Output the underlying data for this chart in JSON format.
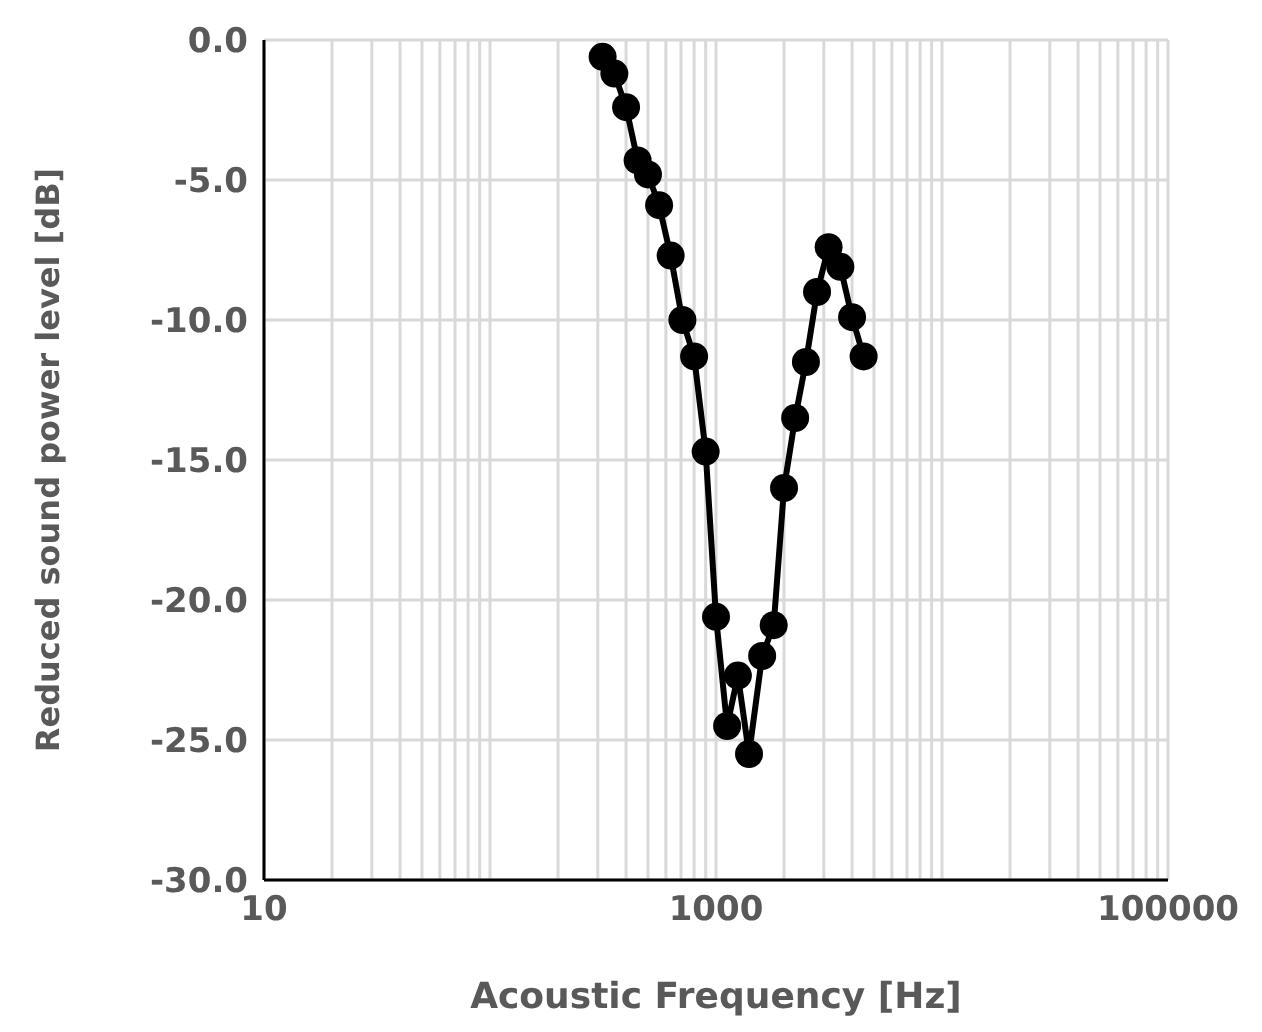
{
  "chart_data": {
    "type": "line",
    "xlabel": "Acoustic Frequency [Hz]",
    "ylabel": "Reduced sound power level [dB]",
    "x": [
      315,
      355,
      400,
      450,
      500,
      560,
      630,
      710,
      800,
      900,
      1000,
      1120,
      1250,
      1400,
      1600,
      1800,
      2000,
      2240,
      2500,
      2800,
      3150,
      3550,
      4000,
      4500
    ],
    "series": [
      {
        "color": "#000000",
        "values": [
          -0.6,
          -1.2,
          -2.4,
          -4.3,
          -4.8,
          -5.9,
          -7.7,
          -10.0,
          -11.3,
          -14.7,
          -20.6,
          -24.5,
          -22.7,
          -25.5,
          -22.0,
          -20.9,
          -16.0,
          -13.5,
          -11.5,
          -9.0,
          -7.4,
          -8.1,
          -9.9,
          -11.3
        ]
      }
    ],
    "log": "x",
    "xlim": [
      10,
      100000
    ],
    "xticks": [
      10,
      {
        "value": 20,
        "label": null
      },
      {
        "value": 30,
        "label": null
      },
      {
        "value": 40,
        "label": null
      },
      {
        "value": 50,
        "label": null
      },
      {
        "value": 60,
        "label": null
      },
      {
        "value": 70,
        "label": null
      },
      {
        "value": 80,
        "label": null
      },
      {
        "value": 90,
        "label": null
      },
      {
        "value": 100,
        "label": null
      },
      {
        "value": 200,
        "label": null
      },
      {
        "value": 300,
        "label": null
      },
      {
        "value": 400,
        "label": null
      },
      {
        "value": 500,
        "label": null
      },
      {
        "value": 600,
        "label": null
      },
      {
        "value": 700,
        "label": null
      },
      {
        "value": 800,
        "label": null
      },
      {
        "value": 900,
        "label": null
      },
      1000,
      {
        "value": 2000,
        "label": null
      },
      {
        "value": 3000,
        "label": null
      },
      {
        "value": 4000,
        "label": null
      },
      {
        "value": 5000,
        "label": null
      },
      {
        "value": 6000,
        "label": null
      },
      {
        "value": 7000,
        "label": null
      },
      {
        "value": 8000,
        "label": null
      },
      {
        "value": 9000,
        "label": null
      },
      {
        "value": 10000,
        "label": null
      },
      {
        "value": 20000,
        "label": null
      },
      {
        "value": 30000,
        "label": null
      },
      {
        "value": 40000,
        "label": null
      },
      {
        "value": 50000,
        "label": null
      },
      {
        "value": 60000,
        "label": null
      },
      {
        "value": 70000,
        "label": null
      },
      {
        "value": 80000,
        "label": null
      },
      {
        "value": 90000,
        "label": null
      },
      100000
    ],
    "ylim": [
      -30,
      0
    ],
    "yticks": [
      {
        "value": -30,
        "label": "-30.0"
      },
      {
        "value": -25,
        "label": "-25.0"
      },
      {
        "value": -20,
        "label": "-20.0"
      },
      {
        "value": -15,
        "label": "-15.0"
      },
      {
        "value": -10,
        "label": "-10.0"
      },
      {
        "value": -5,
        "label": "-5.0"
      },
      {
        "value": 0,
        "label": "0.0"
      }
    ],
    "grid": true,
    "marker": "circle",
    "line_style": "solid"
  }
}
